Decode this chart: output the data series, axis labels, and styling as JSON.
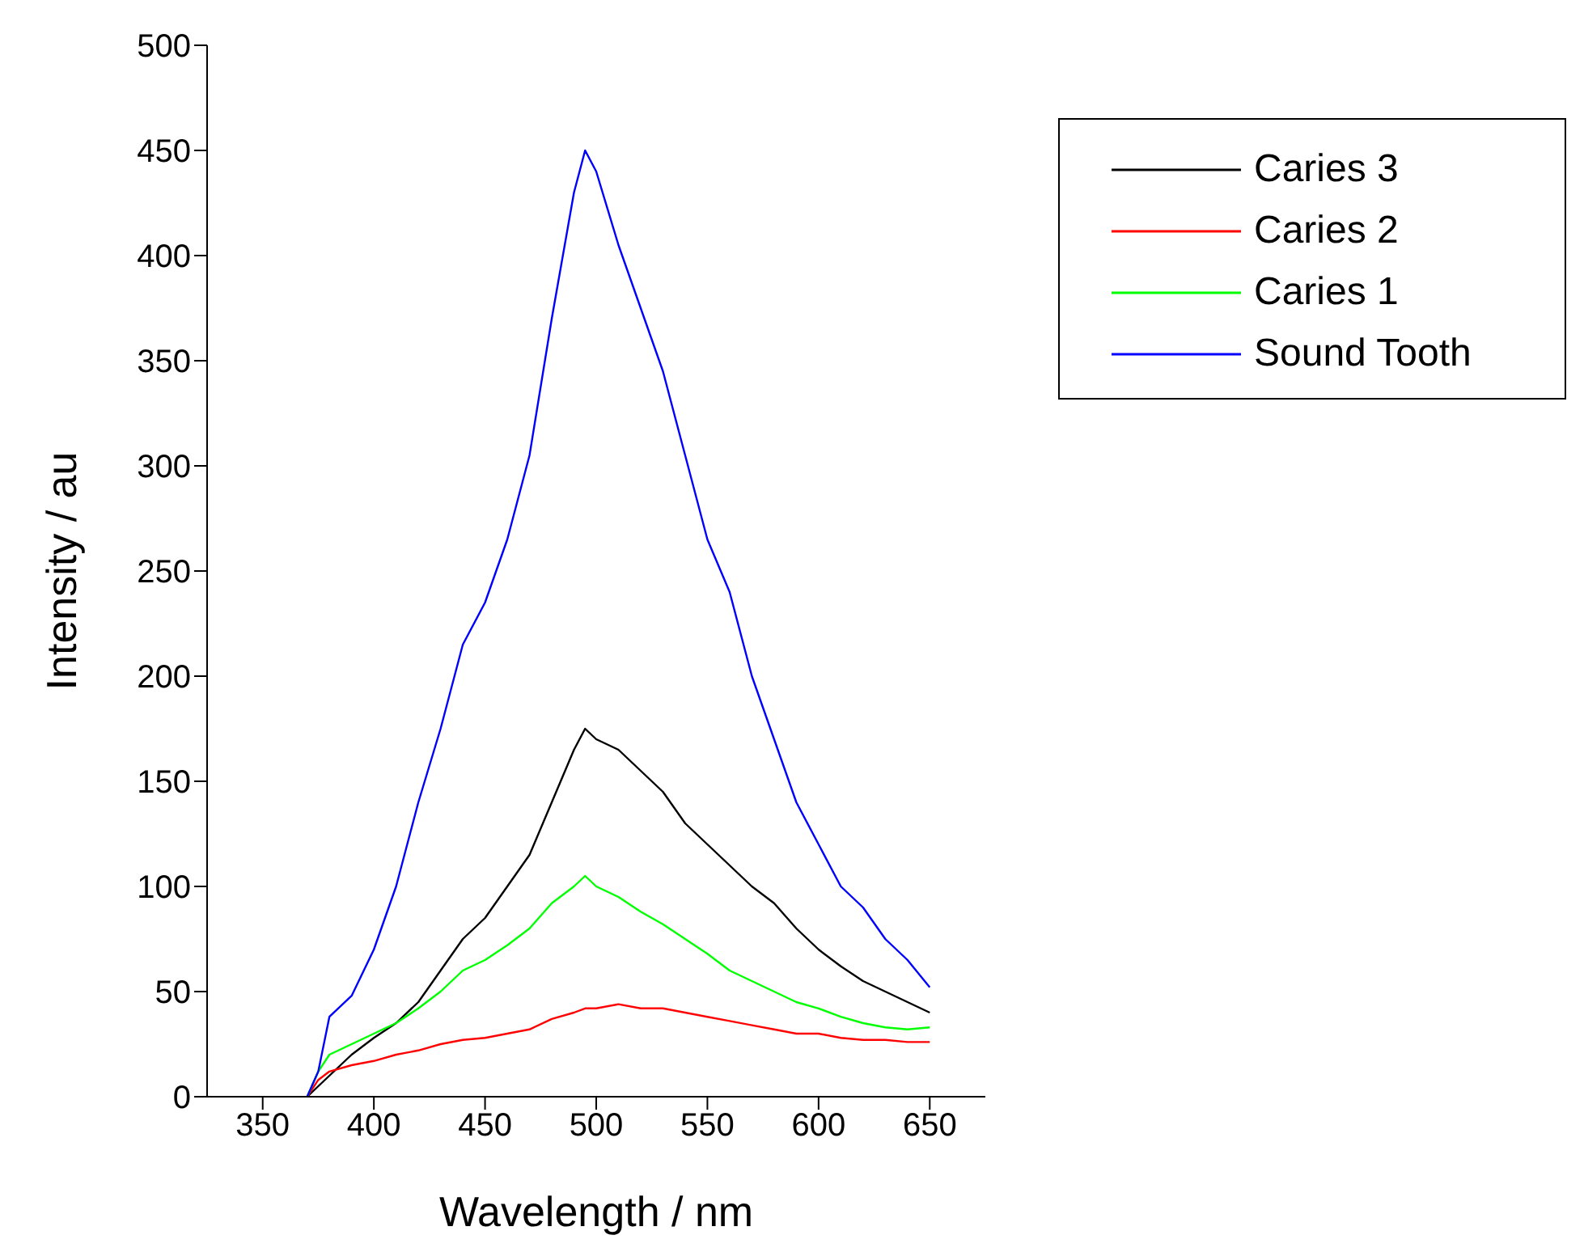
{
  "chart_data": {
    "type": "line",
    "xlabel": "Wavelength / nm",
    "ylabel": "Intensity / au",
    "x": [
      370,
      375,
      380,
      390,
      400,
      410,
      420,
      430,
      440,
      450,
      460,
      470,
      480,
      490,
      495,
      500,
      510,
      520,
      530,
      540,
      550,
      560,
      570,
      580,
      590,
      600,
      610,
      620,
      630,
      640,
      650
    ],
    "series": [
      {
        "name": "Caries 3",
        "color": "#000000",
        "values": [
          0,
          5,
          10,
          20,
          28,
          35,
          45,
          60,
          75,
          85,
          100,
          115,
          140,
          165,
          175,
          170,
          165,
          155,
          145,
          130,
          120,
          110,
          100,
          92,
          80,
          70,
          62,
          55,
          50,
          45,
          40
        ]
      },
      {
        "name": "Caries 2",
        "color": "#ff0000",
        "values": [
          0,
          8,
          12,
          15,
          17,
          20,
          22,
          25,
          27,
          28,
          30,
          32,
          37,
          40,
          42,
          42,
          44,
          42,
          42,
          40,
          38,
          36,
          34,
          32,
          30,
          30,
          28,
          27,
          27,
          26,
          26
        ]
      },
      {
        "name": "Caries 1",
        "color": "#00ff00",
        "values": [
          0,
          12,
          20,
          25,
          30,
          35,
          42,
          50,
          60,
          65,
          72,
          80,
          92,
          100,
          105,
          100,
          95,
          88,
          82,
          75,
          68,
          60,
          55,
          50,
          45,
          42,
          38,
          35,
          33,
          32,
          33
        ]
      },
      {
        "name": "Sound Tooth",
        "color": "#0000ff",
        "values": [
          0,
          12,
          38,
          48,
          70,
          100,
          140,
          175,
          215,
          235,
          265,
          305,
          370,
          430,
          450,
          440,
          405,
          375,
          345,
          305,
          265,
          240,
          200,
          170,
          140,
          120,
          100,
          90,
          75,
          65,
          52
        ]
      }
    ],
    "xlim": [
      325,
      675
    ],
    "xticks": [
      350,
      400,
      450,
      500,
      550,
      600,
      650
    ],
    "ylim": [
      0,
      500
    ],
    "yticks": [
      0,
      50,
      100,
      150,
      200,
      250,
      300,
      350,
      400,
      450,
      500
    ],
    "grid": false,
    "legend": "top right",
    "marker": "none",
    "line_style": "solid"
  }
}
